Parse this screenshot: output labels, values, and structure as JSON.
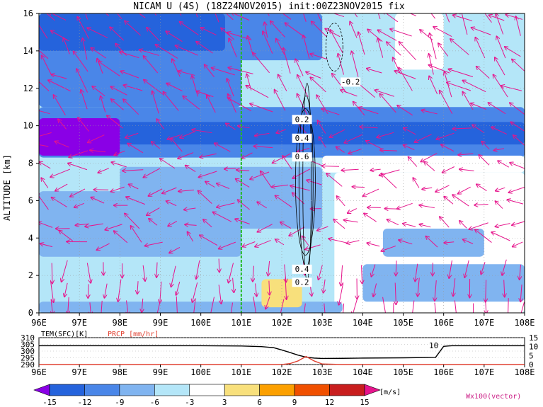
{
  "chart_data": [
    {
      "type": "heatmap",
      "title": "NICAM U (4S) (18Z24NOV2015) init:00Z23NOV2015 fix",
      "ylabel": "ALTITUDE [km]",
      "x_ticks": [
        "96E",
        "97E",
        "98E",
        "99E",
        "100E",
        "101E",
        "102E",
        "103E",
        "104E",
        "105E",
        "106E",
        "107E",
        "108E"
      ],
      "xlim": [
        96,
        108
      ],
      "y_ticks": [
        "0",
        "2",
        "4",
        "6",
        "8",
        "10",
        "12",
        "14",
        "16"
      ],
      "ylim": [
        0,
        16
      ],
      "grid": true,
      "marker_line_x": 101,
      "contour_labels": [
        "-0.2",
        "0.2",
        "0.4",
        "0.6",
        "0.4",
        "0.2"
      ],
      "colorbar": {
        "levels": [
          "-15",
          "-12",
          "-9",
          "-6",
          "-3",
          "3",
          "6",
          "9",
          "12",
          "15"
        ],
        "colors": [
          "#8a00e6",
          "#2563dc",
          "#4a86e8",
          "#80b4f0",
          "#b4e6f8",
          "#ffffff",
          "#f8e07c",
          "#fca000",
          "#f05000",
          "#c81e1e",
          "#e6148c"
        ],
        "unit": "[m/s]",
        "vector_label": "Wx100(vector)"
      }
    },
    {
      "type": "line",
      "series_labels": [
        "TEM(SFC)[K]",
        "PRCP [mm/hr]"
      ],
      "left_ticks": [
        "290",
        "295",
        "300",
        "305",
        "310"
      ],
      "ylim_left": [
        290,
        310
      ],
      "right_ticks": [
        "0",
        "5",
        "10",
        "15"
      ],
      "ylim_right": [
        0,
        15
      ],
      "annotation": "10",
      "x": [
        96,
        97,
        98,
        99,
        100,
        101,
        101.5,
        101.8,
        102,
        102.2,
        102.4,
        102.6,
        102.8,
        103,
        103.5,
        104,
        105,
        105.8,
        106,
        106.2,
        107,
        108
      ],
      "tem": [
        304,
        304,
        304,
        304,
        304,
        303.8,
        303.3,
        302.5,
        300.8,
        299,
        297,
        295.5,
        294.8,
        294.5,
        294.6,
        294.8,
        295,
        295.3,
        303.5,
        304,
        304,
        304
      ],
      "prcp": [
        0,
        0,
        0,
        0,
        0,
        0,
        0,
        0,
        0,
        0.5,
        2,
        4.5,
        2,
        0.3,
        0,
        0,
        0,
        0,
        0,
        0,
        0,
        0
      ]
    }
  ]
}
